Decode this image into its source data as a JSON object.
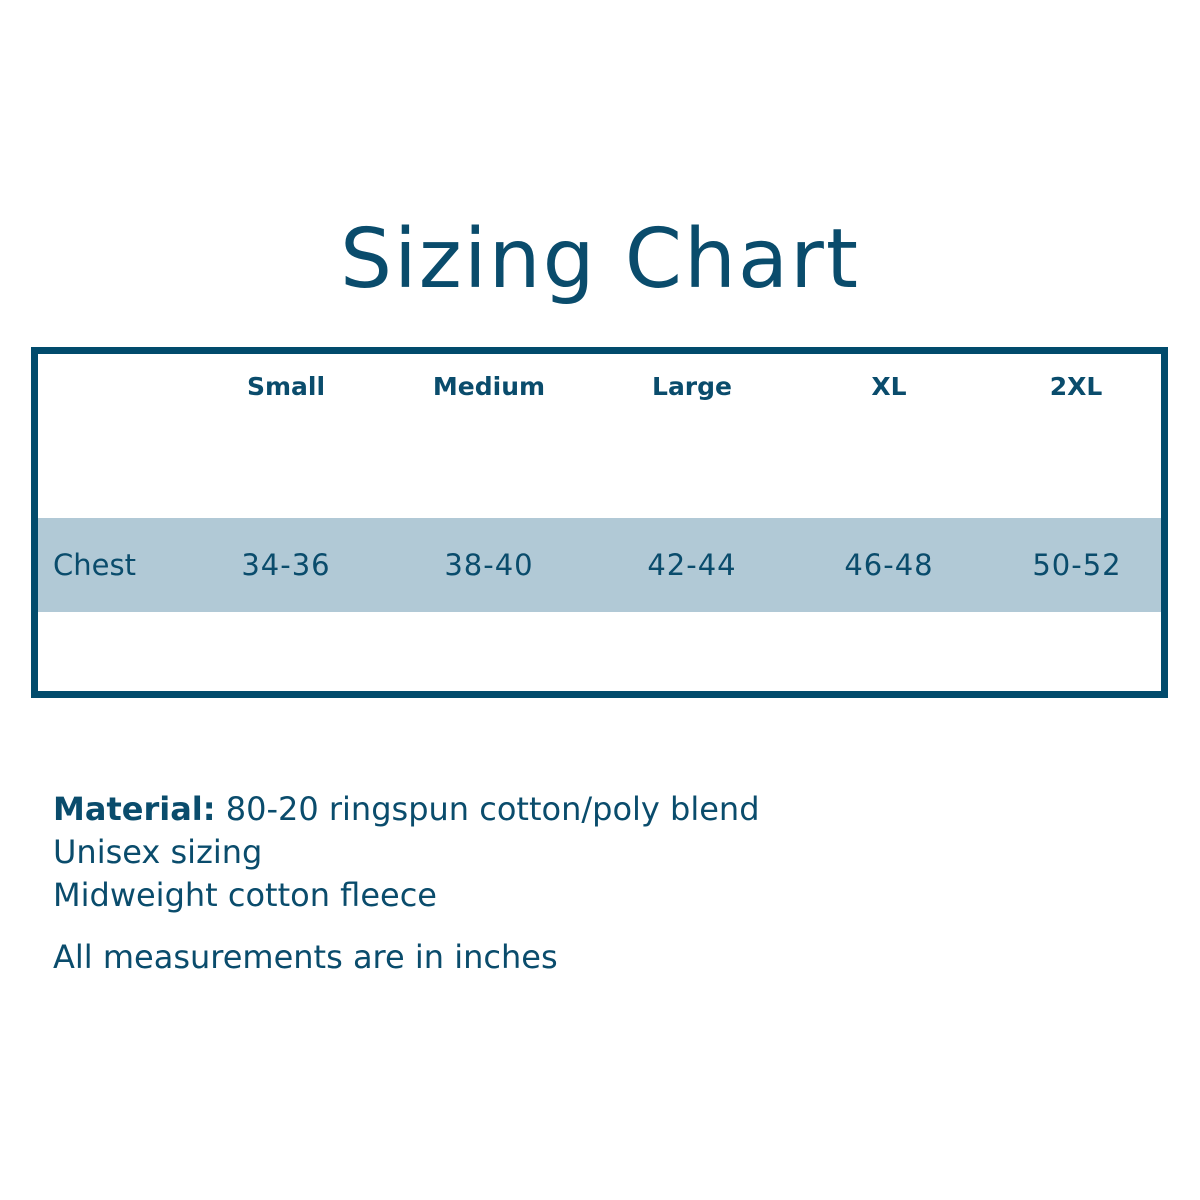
{
  "title": "Sizing Chart",
  "colors": {
    "primary": "#014b6c",
    "band": "#b1c9d6"
  },
  "table": {
    "headers": [
      "Small",
      "Medium",
      "Large",
      "XL",
      "2XL"
    ],
    "rows": [
      {
        "label": "Chest",
        "values": [
          "34-36",
          "38-40",
          "42-44",
          "46-48",
          "50-52"
        ]
      }
    ]
  },
  "notes": {
    "material_label": "Material:",
    "material_value": " 80-20 ringspun cotton/poly blend",
    "line2": "Unisex sizing",
    "line3": "Midweight cotton fleece",
    "units": "All measurements are in inches"
  }
}
